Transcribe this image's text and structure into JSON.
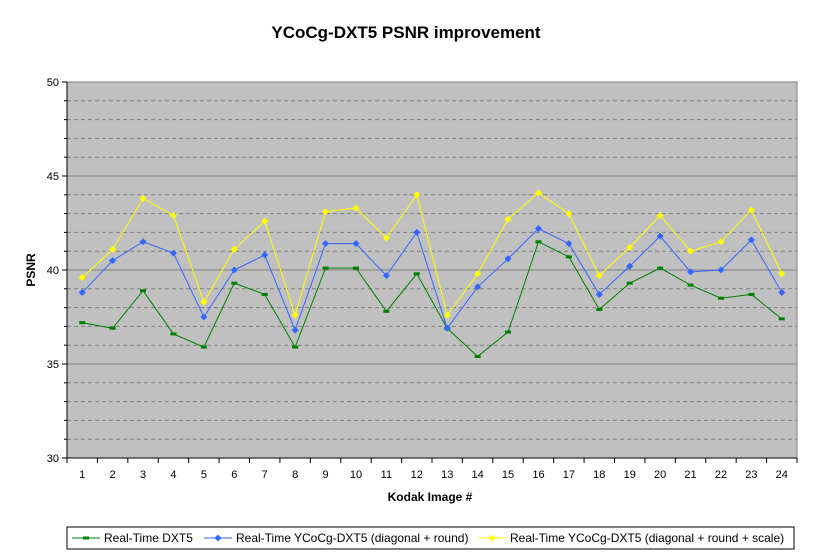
{
  "chart_data": {
    "type": "line",
    "title": "YCoCg-DXT5 PSNR improvement",
    "xlabel": "Kodak Image #",
    "ylabel": "PSNR",
    "ylim": [
      30,
      50
    ],
    "ymajor_ticks": [
      30,
      35,
      40,
      45,
      50
    ],
    "yminor_step": 1,
    "grid": true,
    "legend_position": "bottom",
    "categories": [
      "1",
      "2",
      "3",
      "4",
      "5",
      "6",
      "7",
      "8",
      "9",
      "10",
      "11",
      "12",
      "13",
      "14",
      "15",
      "16",
      "17",
      "18",
      "19",
      "20",
      "21",
      "22",
      "23",
      "24"
    ],
    "series": [
      {
        "name": "Real-Time DXT5",
        "color": "#008000",
        "marker": "dash",
        "values": [
          37.2,
          36.9,
          38.9,
          36.6,
          35.9,
          39.3,
          38.7,
          35.9,
          40.1,
          40.1,
          37.8,
          39.8,
          36.9,
          35.4,
          36.7,
          41.5,
          40.7,
          37.9,
          39.3,
          40.1,
          39.2,
          38.5,
          38.7,
          37.4
        ]
      },
      {
        "name": "Real-Time YCoCg-DXT5 (diagonal + round)",
        "color": "#3366ff",
        "marker": "diamond",
        "values": [
          38.8,
          40.5,
          41.5,
          40.9,
          37.5,
          40.0,
          40.8,
          36.8,
          41.4,
          41.4,
          39.7,
          42.0,
          36.9,
          39.1,
          40.6,
          42.2,
          41.4,
          38.7,
          40.2,
          41.8,
          39.9,
          40.0,
          41.6,
          38.8
        ]
      },
      {
        "name": "Real-Time YCoCg-DXT5 (diagonal + round + scale)",
        "color": "#ffff00",
        "marker": "diamond",
        "values": [
          39.6,
          41.1,
          43.8,
          42.9,
          38.3,
          41.1,
          42.6,
          37.6,
          43.1,
          43.3,
          41.7,
          44.0,
          37.6,
          39.8,
          42.7,
          44.1,
          43.0,
          39.7,
          41.2,
          42.9,
          41.0,
          41.5,
          43.2,
          39.8
        ]
      }
    ]
  }
}
